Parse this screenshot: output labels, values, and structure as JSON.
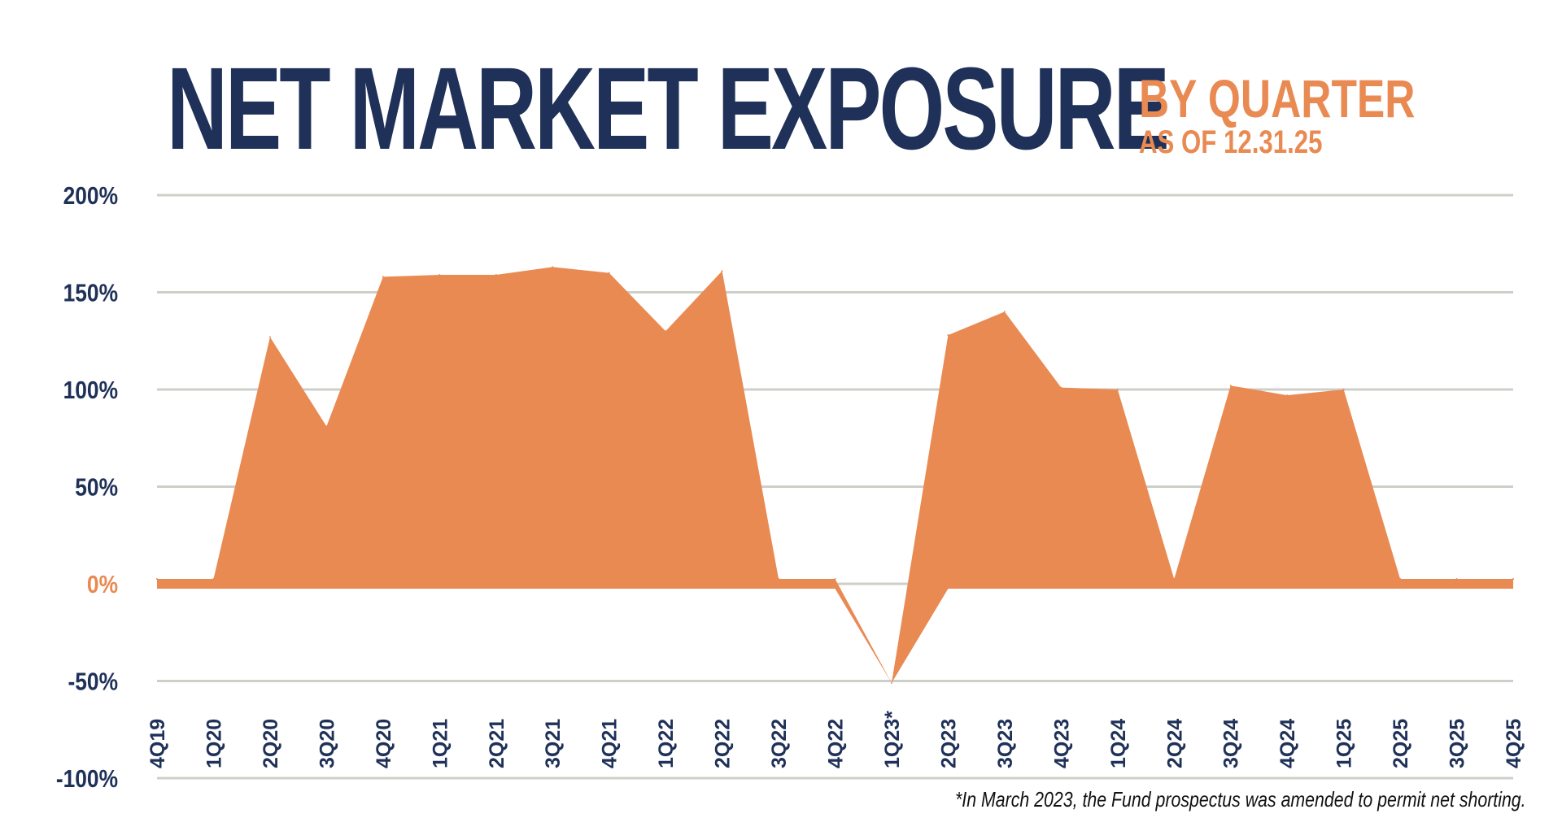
{
  "header": {
    "title": "NET MARKET EXPOSURE",
    "subtitle": "BY QUARTER",
    "as_of": "AS OF 12.31.25"
  },
  "footnote": "*In March 2023, the Fund prospectus was amended to permit net shorting.",
  "colors": {
    "area": "#e98a53",
    "title": "#1f3158",
    "accent": "#e98a53",
    "grid": "#cfcfc9"
  },
  "chart_data": {
    "type": "area",
    "title": "NET MARKET EXPOSURE",
    "subtitle": "BY QUARTER",
    "xlabel": "",
    "ylabel": "",
    "ylim": [
      -100,
      200
    ],
    "yticks": [
      200,
      150,
      100,
      50,
      0,
      -50,
      -100
    ],
    "ytick_labels": [
      "200%",
      "150%",
      "100%",
      "50%",
      "0%",
      "-50%",
      "-100%"
    ],
    "grid": true,
    "legend": "none",
    "categories": [
      "4Q19",
      "1Q20",
      "2Q20",
      "3Q20",
      "4Q20",
      "1Q21",
      "2Q21",
      "3Q21",
      "4Q21",
      "1Q22",
      "2Q22",
      "3Q22",
      "4Q22",
      "1Q23*",
      "2Q23",
      "3Q23",
      "4Q23",
      "1Q24",
      "2Q24",
      "3Q24",
      "4Q24",
      "1Q25",
      "2Q25",
      "3Q25",
      "4Q25"
    ],
    "series": [
      {
        "values": [
          0,
          0,
          127,
          81,
          158,
          159,
          159,
          163,
          160,
          130,
          161,
          0,
          0,
          -51,
          128,
          140,
          101,
          100,
          0,
          102,
          97,
          100,
          0,
          0,
          0
        ]
      }
    ]
  }
}
